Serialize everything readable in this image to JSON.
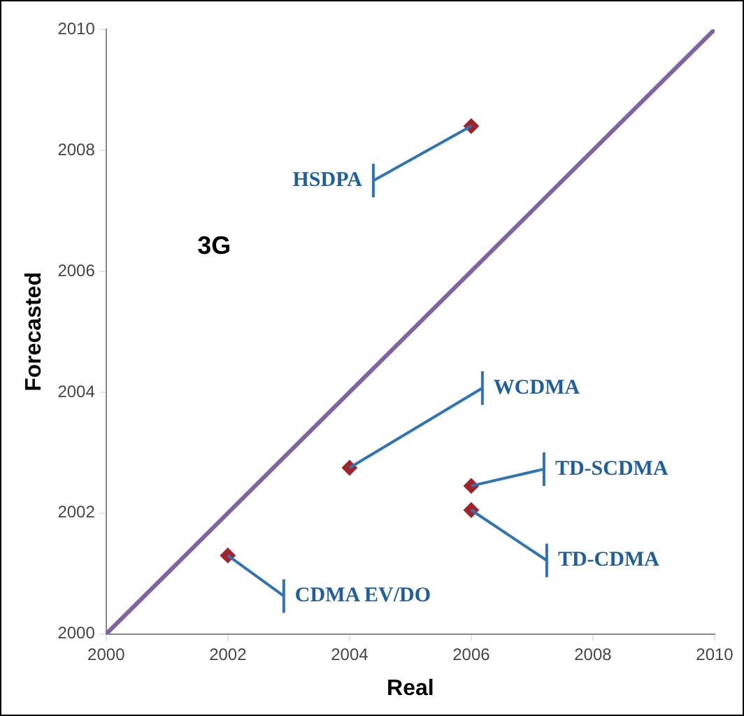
{
  "chart_data": {
    "type": "scatter",
    "xlabel": "Real",
    "ylabel": "Forecasted",
    "xlim": [
      2000,
      2010
    ],
    "xticks": [
      2000,
      2002,
      2004,
      2006,
      2008,
      2010
    ],
    "ylim": [
      2000,
      2010
    ],
    "yticks": [
      2000,
      2002,
      2004,
      2006,
      2008,
      2010
    ],
    "grid": false,
    "legend": false,
    "series": [
      {
        "type": "line",
        "x": [
          2000,
          2010
        ],
        "values": [
          2000,
          2010
        ],
        "color": "#8064a2",
        "marker": "none"
      },
      {
        "type": "scatter",
        "marker": "diamond",
        "x": [
          2006,
          2004,
          2006,
          2006,
          2002
        ],
        "values": [
          2008.4,
          2002.75,
          2002.45,
          2002.05,
          2001.3
        ],
        "color": "#a3232a"
      }
    ],
    "annotations": [
      "3G",
      {
        "text": "HSDPA",
        "x": 2006,
        "y": 2008.4
      },
      {
        "text": "WCDMA",
        "x": 2004,
        "y": 2002.75
      },
      {
        "text": "TD-SCDMA",
        "x": 2006,
        "y": 2002.45
      },
      {
        "text": "TD-CDMA",
        "x": 2006,
        "y": 2002.05
      },
      {
        "text": "CDMA EV/DO",
        "x": 2002,
        "y": 2001.3
      }
    ]
  }
}
